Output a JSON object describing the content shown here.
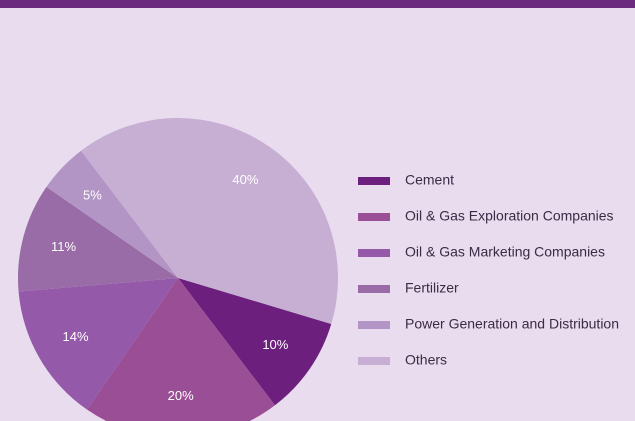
{
  "chart_data": {
    "type": "pie",
    "categories": [
      "Cement",
      "Oil & Gas Exploration Companies",
      "Oil & Gas Marketing Companies",
      "Fertilizer",
      "Power Generation and Distribution",
      "Others"
    ],
    "values": [
      10,
      20,
      14,
      11,
      5,
      40
    ],
    "value_labels": [
      "10%",
      "20%",
      "14%",
      "11%",
      "5%",
      "40%"
    ],
    "colors": [
      "#6c1f7d",
      "#9a4e95",
      "#9459a9",
      "#996ba7",
      "#b395c5",
      "#c7afd4"
    ]
  }
}
